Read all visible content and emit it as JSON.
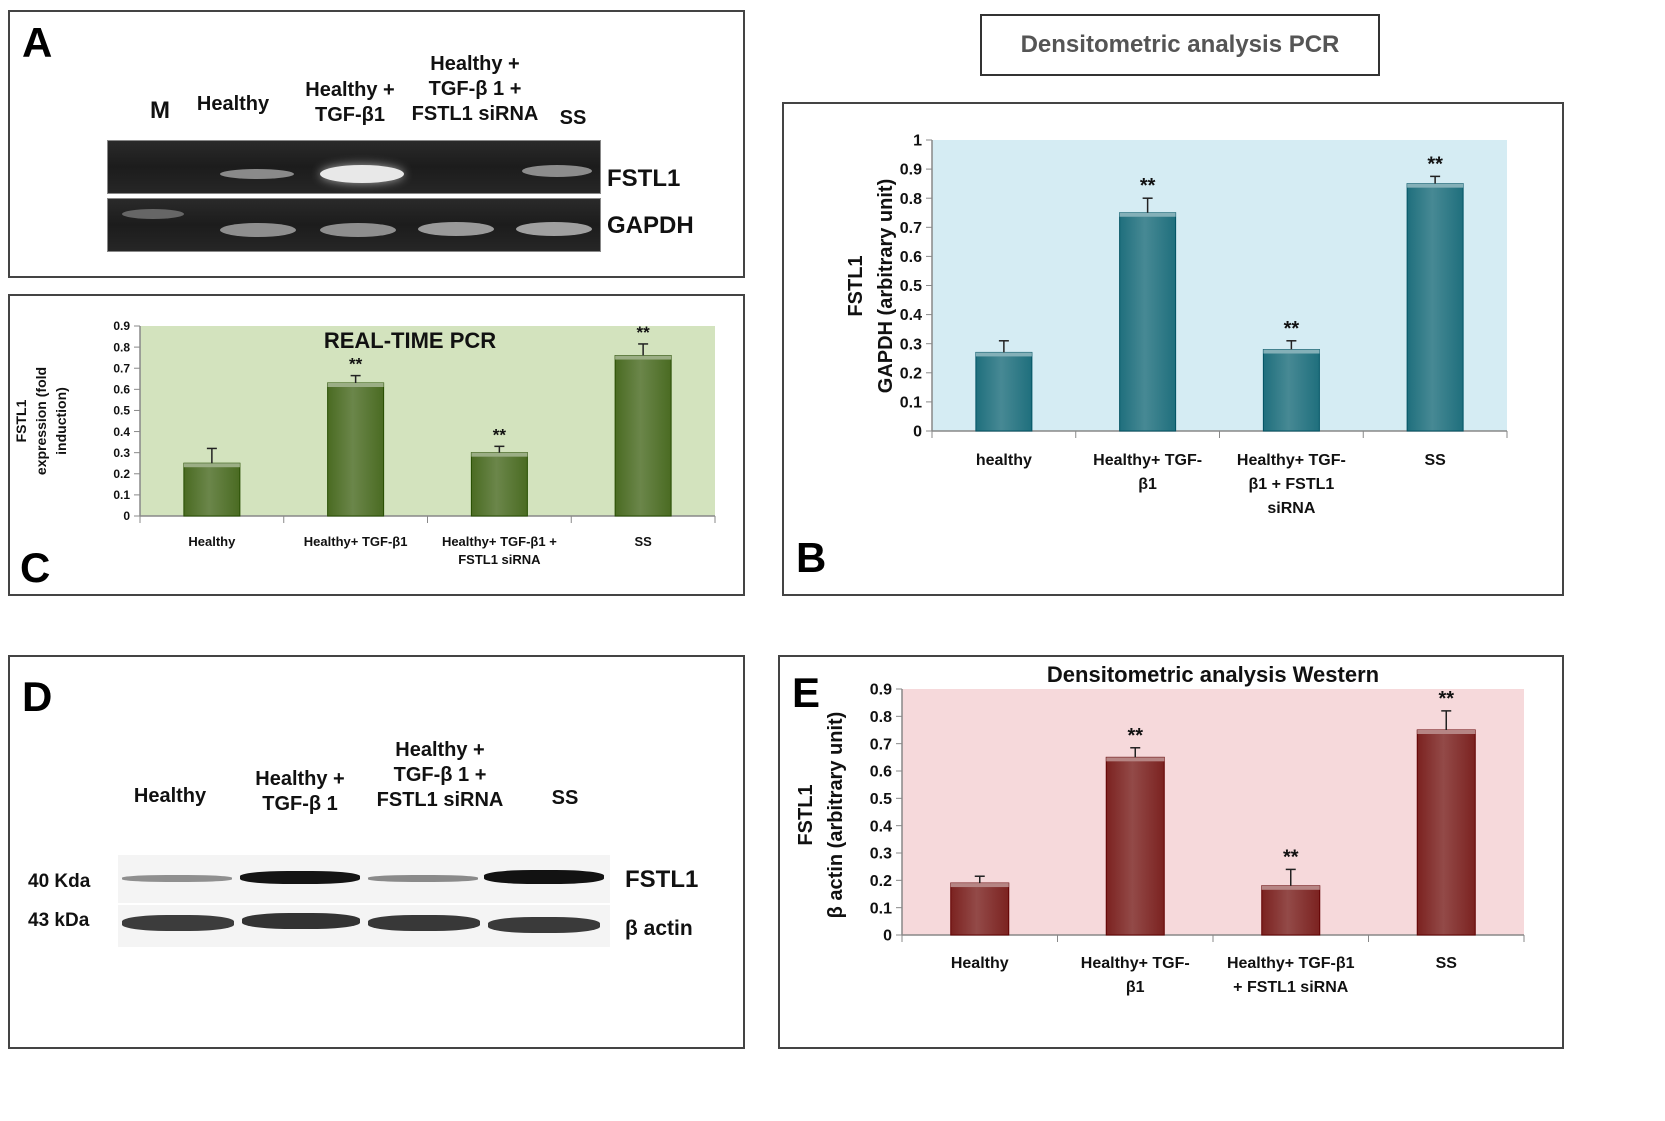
{
  "panelA": {
    "letter": "A",
    "lanes": [
      "M",
      "Healthy",
      "Healthy +\nTGF-β1",
      "Healthy +\nTGF-β 1 +\nFSTL1 siRNA",
      "SS"
    ],
    "rows": [
      "FSTL1",
      "GAPDH"
    ]
  },
  "panelB_title": "Densitometric analysis PCR",
  "panelD": {
    "letter": "D",
    "lanes": [
      "Healthy",
      "Healthy +\nTGF-β 1",
      "Healthy +\nTGF-β 1 +\nFSTL1 siRNA",
      "SS"
    ],
    "rows": [
      "FSTL1",
      "β actin"
    ],
    "mw": [
      "40 Kda",
      "43 kDa"
    ]
  },
  "chart_data": [
    {
      "id": "B",
      "letter": "B",
      "type": "bar",
      "title": "",
      "categories": [
        "healthy",
        "Healthy+ TGF-\nβ1",
        "Healthy+ TGF-\nβ1 + FSTL1\nsiRNA",
        "SS"
      ],
      "values": [
        0.27,
        0.75,
        0.28,
        0.85
      ],
      "errors": [
        0.04,
        0.05,
        0.03,
        0.025
      ],
      "significance": [
        "",
        "**",
        "**",
        "**"
      ],
      "ylabel": "FSTL1\nGAPDH (arbitrary unit)",
      "ylim": [
        0,
        1
      ],
      "yticks": [
        "0",
        "0.1",
        "0.2",
        "0.3",
        "0.4",
        "0.5",
        "0.6",
        "0.7",
        "0.8",
        "0.9",
        "1"
      ],
      "bar_color": "#1f6f7d",
      "plot_bg": "#d5ecf3"
    },
    {
      "id": "C",
      "letter": "C",
      "type": "bar",
      "title": "REAL-TIME PCR",
      "categories": [
        "Healthy",
        "Healthy+ TGF-β1",
        "Healthy+ TGF-β1 +\nFSTL1 siRNA",
        "SS"
      ],
      "values": [
        0.25,
        0.63,
        0.3,
        0.76
      ],
      "errors": [
        0.07,
        0.035,
        0.03,
        0.055
      ],
      "significance": [
        "",
        "**",
        "**",
        "**"
      ],
      "ylabel": "FSTL1\nexpression (fold\ninduction)",
      "ylim": [
        0,
        0.9
      ],
      "yticks": [
        "0",
        "0.1",
        "0.2",
        "0.3",
        "0.4",
        "0.5",
        "0.6",
        "0.7",
        "0.8",
        "0.9"
      ],
      "bar_color": "#4a6b22",
      "plot_bg": "#d3e3be"
    },
    {
      "id": "E",
      "letter": "E",
      "type": "bar",
      "title": "Densitometric analysis Western",
      "categories": [
        "Healthy",
        "Healthy+ TGF-\nβ1",
        "Healthy+ TGF-β1\n+ FSTL1 siRNA",
        "SS"
      ],
      "values": [
        0.19,
        0.65,
        0.18,
        0.75
      ],
      "errors": [
        0.025,
        0.035,
        0.06,
        0.07
      ],
      "significance": [
        "",
        "**",
        "**",
        "**"
      ],
      "ylabel": "FSTL1\nβ actin (arbitrary unit)",
      "ylim": [
        0,
        0.9
      ],
      "yticks": [
        "0",
        "0.1",
        "0.2",
        "0.3",
        "0.4",
        "0.5",
        "0.6",
        "0.7",
        "0.8",
        "0.9"
      ],
      "bar_color": "#7b2220",
      "plot_bg": "#f6d9db"
    }
  ]
}
